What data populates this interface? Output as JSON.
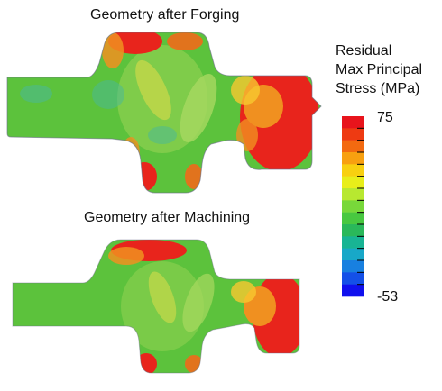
{
  "panels": {
    "forging_title": "Geometry after Forging",
    "machining_title": "Geometry after Machining"
  },
  "legend": {
    "title_lines": [
      "Residual",
      "Max Principal",
      "Stress (MPa)"
    ],
    "max_label": "75",
    "min_label": "-53",
    "colors": [
      "#e8141c",
      "#ee3a12",
      "#f36a10",
      "#f8a010",
      "#f8d010",
      "#e8ee1a",
      "#b8e830",
      "#78d83a",
      "#48c840",
      "#2ab85a",
      "#18b494",
      "#18a8c8",
      "#1880e0",
      "#1450e8",
      "#1010ee"
    ]
  },
  "palette": {
    "green": "#5cc23c",
    "light_green": "#a8d860",
    "yellow_green": "#c8d84a",
    "orange": "#f09020",
    "red": "#e8241c",
    "cyan": "#48b8a0"
  }
}
